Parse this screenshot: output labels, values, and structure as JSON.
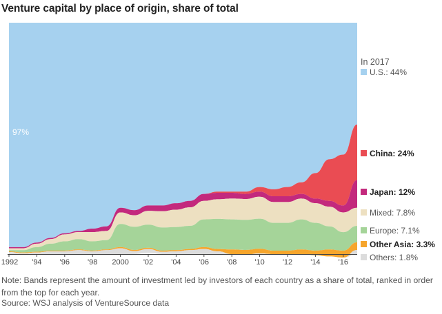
{
  "title": "Venture capital by place of origin, share of total",
  "note": "Note: Bands represent the amount of investment led by investors of each country as a share of total, ranked in order from the top for each year.",
  "source": "Source: WSJ analysis of VentureSource data",
  "chart_data": {
    "type": "area",
    "title": "Venture capital by place of origin, share of total",
    "x_tick_labels": [
      "1992",
      "'94",
      "'96",
      "'98",
      "2000",
      "'02",
      "'04",
      "'06",
      "'08",
      "'10",
      "'12",
      "'14",
      "'16"
    ],
    "x": [
      1992,
      1993,
      1994,
      1995,
      1996,
      1997,
      1998,
      1999,
      2000,
      2001,
      2002,
      2003,
      2004,
      2005,
      2006,
      2007,
      2008,
      2009,
      2010,
      2011,
      2012,
      2013,
      2014,
      2015,
      2016,
      2017
    ],
    "ylim": [
      0,
      100
    ],
    "annotation_left": "97%",
    "legend_header": "In 2017",
    "series": [
      {
        "name": "U.S.",
        "label": "U.S.: 44%",
        "value_2017": 44,
        "color": "#a6d1ef",
        "values": [
          97,
          97,
          95,
          93,
          91,
          90,
          89,
          88,
          80,
          81,
          79,
          79,
          78,
          77,
          74,
          73,
          73,
          73,
          71,
          72,
          71,
          69,
          65,
          59,
          57,
          44
        ]
      },
      {
        "name": "China",
        "label": "China: 24%",
        "value_2017": 24,
        "color": "#ea4c53",
        "values": [
          0,
          0,
          0,
          0,
          0,
          0,
          0,
          0,
          0,
          0,
          0,
          0,
          0,
          0,
          0,
          0.5,
          0.5,
          1,
          2,
          3,
          4,
          5,
          11,
          18,
          22,
          24
        ]
      },
      {
        "name": "Japan",
        "label": "Japan: 12%",
        "value_2017": 12,
        "color": "#c3297d",
        "values": [
          0.5,
          0.5,
          0.5,
          0.5,
          0.5,
          0.5,
          1.5,
          2,
          2,
          2.2,
          2.3,
          2.5,
          2.8,
          2.8,
          3,
          2.8,
          2.5,
          2.2,
          2.2,
          2.5,
          2.5,
          2,
          2,
          2.5,
          3,
          12
        ]
      },
      {
        "name": "Mixed",
        "label": "Mixed: 7.8%",
        "value_2017": 7.8,
        "color": "#ede0c1",
        "values": [
          0.8,
          0.8,
          1.5,
          2,
          3,
          3,
          4,
          4,
          5,
          5,
          6,
          7,
          7.5,
          8,
          8,
          8.5,
          9,
          9,
          9.5,
          9,
          9,
          9,
          8.5,
          8.5,
          8.5,
          7.8
        ]
      },
      {
        "name": "Europe",
        "label": "Europe: 7.1%",
        "value_2017": 7.1,
        "color": "#a5d499",
        "values": [
          0.5,
          1,
          2,
          3,
          4,
          4.5,
          4,
          4,
          10,
          10,
          10,
          10,
          10,
          10,
          12,
          13,
          13,
          13,
          13,
          12,
          12,
          13,
          12,
          10,
          8,
          7.1
        ]
      },
      {
        "name": "Other Asia",
        "label": "Other Asia: 3.3%",
        "value_2017": 3.3,
        "color": "#f6a52c",
        "values": [
          0.3,
          0.3,
          0.3,
          0.3,
          0.3,
          0.3,
          0.3,
          0.3,
          0.5,
          0.5,
          0.5,
          0.5,
          0.5,
          0.5,
          0.8,
          1,
          2,
          2,
          2,
          1.5,
          1.5,
          2,
          2,
          3,
          3,
          3.3
        ]
      },
      {
        "name": "Others",
        "label": "Others: 1.8%",
        "value_2017": 1.8,
        "color": "#dcdcdc",
        "values": [
          0.9,
          0.4,
          0.7,
          1.2,
          1.2,
          1.7,
          1.2,
          1.7,
          2.5,
          1.3,
          1.7,
          1,
          1.2,
          1.7,
          2.2,
          1.2,
          0,
          0,
          0.3,
          0,
          0,
          0,
          0,
          0,
          0,
          1.8
        ]
      }
    ]
  }
}
